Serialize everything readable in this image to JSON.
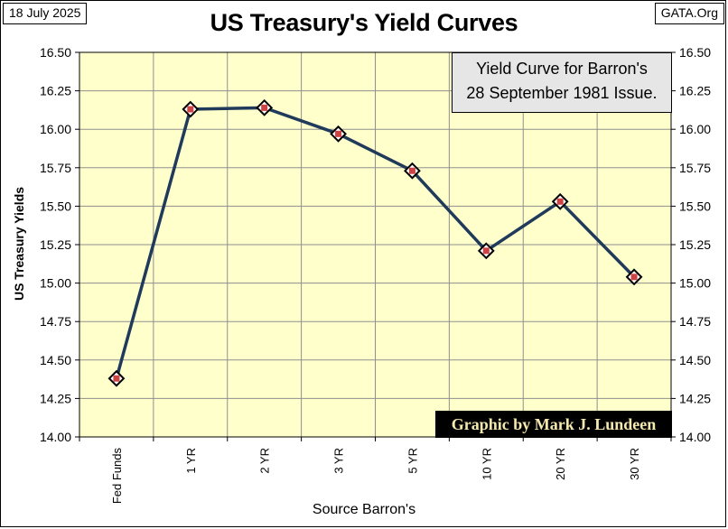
{
  "header": {
    "date": "18 July 2025",
    "source_org": "GATA.Org"
  },
  "legend": {
    "line1": "Yield Curve for Barron's",
    "line2": "28 September  1981 Issue."
  },
  "credit": "Graphic by Mark J. Lundeen",
  "colors": {
    "plot_bg": "#ffffcc",
    "line": "#1f3a5a",
    "marker_fill": "#cc4444",
    "grid": "#8f8f8f"
  },
  "chart_data": {
    "type": "line",
    "title": "US Treasury's Yield Curves",
    "xlabel": "Source Barron's",
    "ylabel": "US Treasury Yields",
    "categories": [
      "Fed Funds",
      "1 YR",
      "2 YR",
      "3 YR",
      "5 YR",
      "10 YR",
      "20 YR",
      "30 YR"
    ],
    "series": [
      {
        "values": [
          14.38,
          16.13,
          16.14,
          15.97,
          15.73,
          15.21,
          15.53,
          15.04
        ]
      }
    ],
    "ylim": [
      14.0,
      16.5
    ],
    "yticks": [
      "14.00",
      "14.25",
      "14.50",
      "14.75",
      "15.00",
      "15.25",
      "15.50",
      "15.75",
      "16.00",
      "16.25",
      "16.50"
    ],
    "grid": true,
    "right_axis": true,
    "legend_position": "top-right"
  }
}
